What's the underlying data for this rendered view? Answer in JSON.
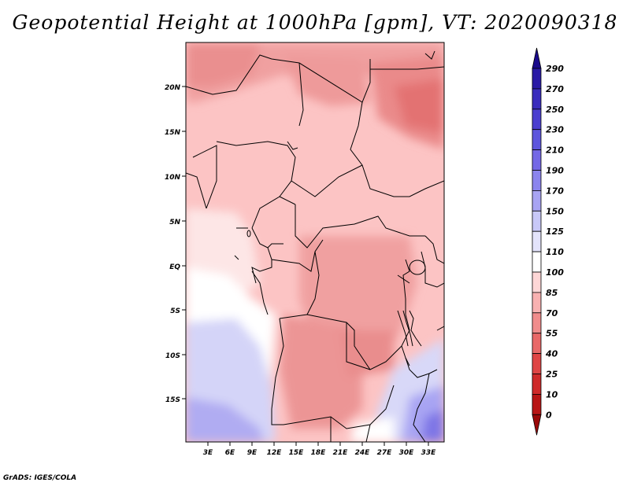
{
  "title": "Geopotential Height at 1000hPa [gpm], VT: 2020090318",
  "credit": "GrADS: IGES/COLA",
  "map": {
    "lat_labels": [
      "20N",
      "15N",
      "10N",
      "5N",
      "EQ",
      "5S",
      "10S",
      "15S"
    ],
    "lon_labels": [
      "3E",
      "6E",
      "9E",
      "12E",
      "15E",
      "18E",
      "21E",
      "24E",
      "27E",
      "30E",
      "33E"
    ]
  },
  "colorbar": {
    "levels": [
      "290",
      "270",
      "250",
      "230",
      "210",
      "190",
      "170",
      "150",
      "125",
      "110",
      "100",
      "85",
      "70",
      "55",
      "40",
      "25",
      "10",
      "0"
    ],
    "colors": [
      "#1a0a8c",
      "#2a1aa6",
      "#3a2cbd",
      "#4b3fd0",
      "#5d55dd",
      "#7468e6",
      "#8b84ee",
      "#a8a4f3",
      "#c8c8f8",
      "#e3e3fb",
      "#ffffff",
      "#fdd6d6",
      "#f8b1b1",
      "#f08c8c",
      "#e86868",
      "#df4545",
      "#cf2a2a",
      "#b81515",
      "#9a0808"
    ]
  }
}
